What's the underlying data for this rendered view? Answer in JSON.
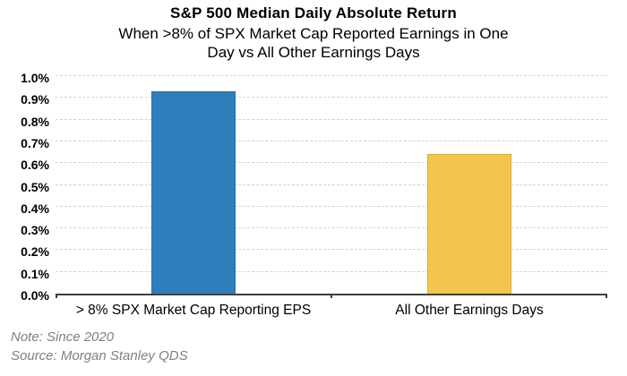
{
  "chart_data": {
    "type": "bar",
    "title": "S&P 500 Median Daily Absolute Return",
    "subtitle": "When >8% of SPX Market Cap Reported Earnings in One Day vs All Other Earnings Days",
    "subtitle_lines": [
      "When >8% of SPX Market Cap Reported Earnings in One",
      "Day vs All Other Earnings Days"
    ],
    "categories": [
      "> 8% SPX Market Cap Reporting EPS",
      "All Other Earnings Days"
    ],
    "values": [
      0.93,
      0.64
    ],
    "unit": "%",
    "ylabel": "",
    "xlabel": "",
    "ylim": [
      0.0,
      1.0
    ],
    "ytick_step": 0.1,
    "ytick_labels": [
      "0.0%",
      "0.1%",
      "0.2%",
      "0.3%",
      "0.4%",
      "0.5%",
      "0.6%",
      "0.7%",
      "0.8%",
      "0.9%",
      "1.0%"
    ],
    "bar_colors": [
      "#2f7ebc",
      "#f4c54d"
    ],
    "grid": "horizontal-dashed",
    "legend": "none"
  },
  "notes": {
    "note": "Note: Since 2020",
    "source": "Source: Morgan Stanley QDS"
  },
  "colors": {
    "bar_blue": "#2f7ebc",
    "bar_yellow": "#f4c54d",
    "gridline": "#c9d7d5",
    "axis": "#3f3f3f",
    "note_text": "#808080",
    "title_text": "#000000",
    "background": "#ffffff"
  }
}
